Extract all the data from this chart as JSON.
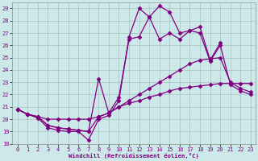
{
  "xlabel": "Windchill (Refroidissement éolien,°C)",
  "bg_color": "#cce8e8",
  "line_color": "#800080",
  "xlim": [
    -0.5,
    23.5
  ],
  "ylim": [
    18,
    29.5
  ],
  "yticks": [
    18,
    19,
    20,
    21,
    22,
    23,
    24,
    25,
    26,
    27,
    28,
    29
  ],
  "xticks": [
    0,
    1,
    2,
    3,
    4,
    5,
    6,
    7,
    8,
    9,
    10,
    11,
    12,
    13,
    14,
    15,
    16,
    17,
    18,
    19,
    20,
    21,
    22,
    23
  ],
  "series": [
    {
      "x": [
        0,
        1,
        2,
        3,
        4,
        5,
        6,
        7,
        8,
        9,
        10,
        11,
        12,
        13,
        14,
        15,
        16,
        17,
        18,
        19,
        20,
        21,
        22,
        23
      ],
      "y": [
        20.8,
        20.4,
        20.1,
        19.3,
        19.1,
        19.0,
        19.0,
        18.3,
        20.0,
        20.3,
        21.5,
        26.7,
        29.0,
        28.3,
        29.2,
        28.7,
        27.0,
        27.2,
        27.5,
        24.8,
        26.2,
        null,
        null,
        null
      ]
    },
    {
      "x": [
        0,
        1,
        2,
        3,
        4,
        5,
        6,
        7,
        8,
        9,
        10,
        11,
        12,
        13,
        14,
        15,
        16,
        17,
        18,
        19,
        20,
        21,
        22,
        23
      ],
      "y": [
        20.8,
        20.4,
        20.2,
        19.5,
        19.3,
        19.2,
        19.1,
        19.0,
        23.3,
        20.5,
        21.8,
        26.5,
        26.7,
        28.3,
        26.5,
        27.0,
        26.5,
        27.2,
        27.0,
        24.7,
        26.0,
        22.8,
        22.3,
        22.0
      ]
    },
    {
      "x": [
        0,
        1,
        2,
        3,
        4,
        5,
        6,
        7,
        8,
        9,
        10,
        11,
        12,
        13,
        14,
        15,
        16,
        17,
        18,
        19,
        20,
        21,
        22,
        23
      ],
      "y": [
        20.8,
        20.4,
        20.2,
        19.5,
        19.3,
        19.2,
        19.1,
        19.0,
        20.2,
        20.5,
        21.0,
        21.5,
        22.0,
        22.5,
        23.0,
        23.5,
        24.0,
        24.5,
        24.8,
        24.9,
        25.0,
        23.0,
        22.5,
        22.2
      ]
    },
    {
      "x": [
        0,
        1,
        2,
        3,
        4,
        5,
        6,
        7,
        8,
        9,
        10,
        11,
        12,
        13,
        14,
        15,
        16,
        17,
        18,
        19,
        20,
        21,
        22,
        23
      ],
      "y": [
        20.8,
        20.4,
        20.2,
        20.0,
        20.0,
        20.0,
        20.0,
        20.0,
        20.2,
        20.5,
        21.0,
        21.3,
        21.5,
        21.8,
        22.0,
        22.3,
        22.5,
        22.6,
        22.7,
        22.8,
        22.9,
        22.9,
        22.9,
        22.9
      ]
    }
  ]
}
